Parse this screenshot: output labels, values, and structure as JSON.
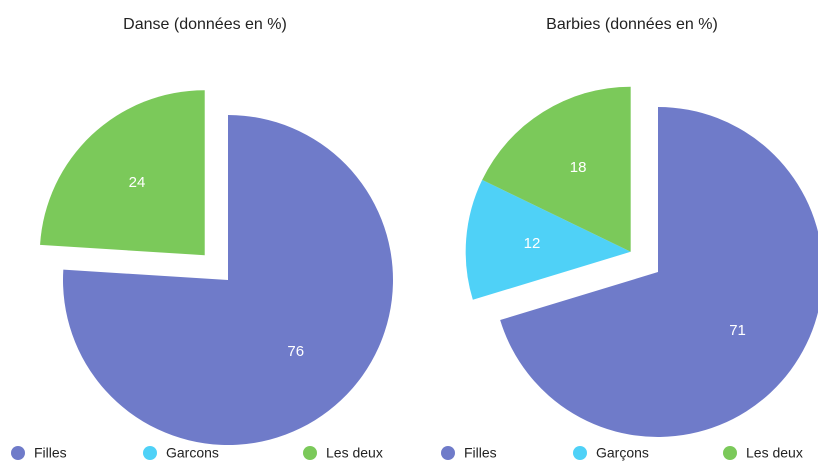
{
  "chart_data": [
    {
      "type": "pie",
      "title": "Danse (données en %)",
      "categories": [
        "Filles",
        "Garcons",
        "Les deux"
      ],
      "values": [
        76,
        0,
        24
      ],
      "colors": [
        "#6f7bc9",
        "#4fd1f7",
        "#7bc95a"
      ]
    },
    {
      "type": "pie",
      "title": "Barbies (données en %)",
      "categories": [
        "Filles",
        "Garçons",
        "Les deux"
      ],
      "values": [
        71,
        12,
        18
      ],
      "colors": [
        "#6f7bc9",
        "#4fd1f7",
        "#7bc95a"
      ]
    }
  ]
}
